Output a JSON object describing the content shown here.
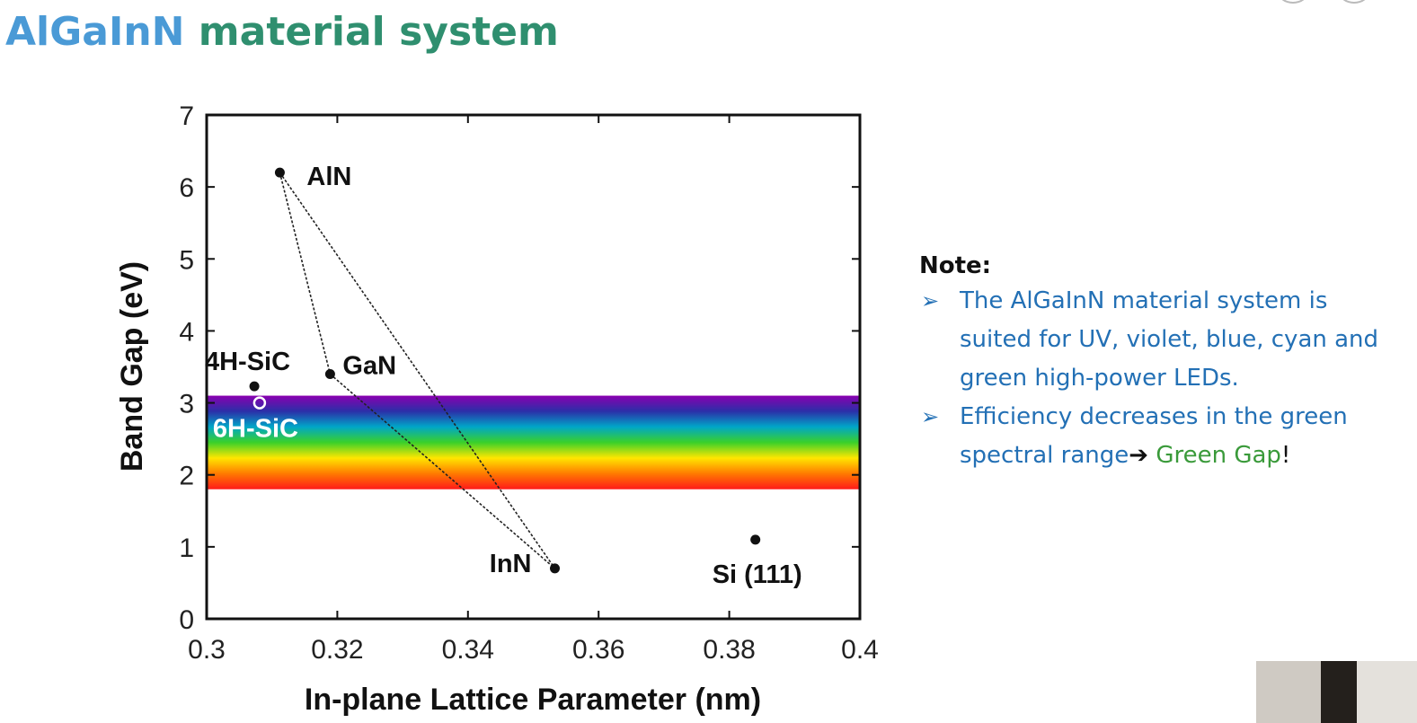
{
  "title": {
    "part1": "AlGaInN",
    "part2": " material system",
    "color1": "#4a9ad6",
    "color2": "#2f8f6f"
  },
  "note": {
    "heading": "Note:",
    "bullet_color": "#2370b5",
    "items": [
      {
        "text": "The AlGaInN material system is suited for UV, violet, blue, cyan and green high-power LEDs."
      },
      {
        "text": "Efficiency decreases in the green spectral range",
        "arrow": "➔",
        "highlight": "Green Gap",
        "highlight_color": "#3a9a3a",
        "end": "!"
      }
    ]
  },
  "chart_data": {
    "type": "scatter",
    "xlabel": "In-plane Lattice Parameter (nm)",
    "ylabel": "Band Gap (eV)",
    "xlim": [
      0.3,
      0.4
    ],
    "ylim": [
      0,
      7
    ],
    "xticks": [
      0.3,
      0.32,
      0.34,
      0.36,
      0.38,
      0.4
    ],
    "xtick_labels": [
      "0.3",
      "0.32",
      "0.34",
      "0.36",
      "0.38",
      "0.4"
    ],
    "yticks": [
      0,
      1,
      2,
      3,
      4,
      5,
      6,
      7
    ],
    "ytick_labels": [
      "0",
      "1",
      "2",
      "3",
      "4",
      "5",
      "6",
      "7"
    ],
    "grid": false,
    "points": [
      {
        "label": "AlN",
        "x": 0.3112,
        "y": 6.2,
        "marker": "filled"
      },
      {
        "label": "GaN",
        "x": 0.3189,
        "y": 3.4,
        "marker": "filled"
      },
      {
        "label": "InN",
        "x": 0.3533,
        "y": 0.7,
        "marker": "filled"
      },
      {
        "label": "4H-SiC",
        "x": 0.3073,
        "y": 3.23,
        "marker": "filled"
      },
      {
        "label": "6H-SiC",
        "x": 0.3081,
        "y": 3.0,
        "marker": "open"
      },
      {
        "label": "Si (111)",
        "x": 0.384,
        "y": 1.1,
        "marker": "filled"
      }
    ],
    "connections": [
      [
        "AlN",
        "GaN"
      ],
      [
        "GaN",
        "InN"
      ],
      [
        "AlN",
        "InN"
      ]
    ],
    "visible_band": {
      "y_range": [
        1.8,
        3.1
      ],
      "colors": [
        "#ff1a1a",
        "#ff7a00",
        "#ffe600",
        "#3ad12a",
        "#00a6c8",
        "#2b2fa8",
        "#8a00b0"
      ]
    }
  }
}
